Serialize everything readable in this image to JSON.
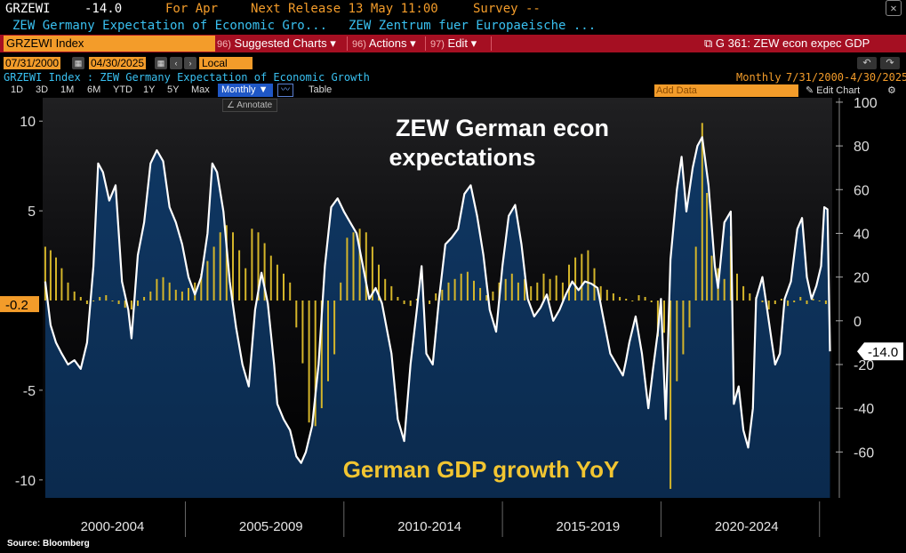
{
  "ticker": {
    "symbol": "GRZEWI",
    "value": "-14.0",
    "period": "For Apr",
    "next_release": "Next Release 13 May 11:00",
    "survey": "Survey --",
    "close_icon": "close-icon"
  },
  "description": {
    "name": "ZEW Germany Expectation of Economic Gro...",
    "source": "ZEW Zentrum fuer Europaeische ..."
  },
  "command_bar": {
    "input": "GRZEWI Index",
    "suggested": "Suggested Charts",
    "suggested_num": "96)",
    "actions": "Actions",
    "actions_num": "96)",
    "edit": "Edit",
    "edit_num": "97)",
    "function": "G 361: ZEW econ expec GDP"
  },
  "date_row": {
    "start": "07/31/2000",
    "end": "04/30/2025",
    "currency": "Local CCY"
  },
  "info_row": {
    "title": "GRZEWI Index : ZEW Germany Expectation of Economic Growth",
    "frequency": "Monthly",
    "range": "7/31/2000-4/30/2025"
  },
  "range_buttons": [
    "1D",
    "3D",
    "1M",
    "6M",
    "YTD",
    "1Y",
    "5Y",
    "Max"
  ],
  "toolbar": {
    "frequency_select": "Monthly",
    "table": "Table",
    "add_data": "Add Data",
    "edit_chart": "Edit Chart",
    "annotate": "Annotate"
  },
  "colors": {
    "gdp_bar": "#d4b52a",
    "zew_line": "#ffffff",
    "area_fill": "#0e3560",
    "value_tag": "#f39c2a"
  },
  "chart_data": {
    "type": "line",
    "titles": [
      "ZEW German econ",
      "expectations"
    ],
    "gdp_label": "German GDP growth YoY",
    "source": "Source: Bloomberg",
    "x_labels": [
      "2000-2004",
      "2005-2009",
      "2010-2014",
      "2015-2019",
      "2020-2024"
    ],
    "xlim": [
      2000.5,
      2025.4
    ],
    "left_axis": {
      "label": "GDP growth YoY (%)",
      "ticks": [
        10,
        5,
        -5,
        -10
      ],
      "ylim": [
        -11,
        11.3
      ],
      "current_tag": "-0.2"
    },
    "right_axis": {
      "label": "ZEW expectations",
      "ticks": [
        100,
        80,
        60,
        40,
        20,
        0,
        -20,
        -40,
        -60
      ],
      "ylim": [
        -81,
        102
      ],
      "current_tag": "-14.0"
    },
    "series": [
      {
        "name": "ZEW Germany Expectation of Economic Growth",
        "axis": "right",
        "points": [
          [
            2000.58,
            18
          ],
          [
            2000.75,
            -2
          ],
          [
            2000.92,
            -10
          ],
          [
            2001.1,
            -15
          ],
          [
            2001.3,
            -20
          ],
          [
            2001.5,
            -18
          ],
          [
            2001.7,
            -22
          ],
          [
            2001.9,
            -10
          ],
          [
            2002.1,
            25
          ],
          [
            2002.25,
            72
          ],
          [
            2002.4,
            68
          ],
          [
            2002.6,
            55
          ],
          [
            2002.8,
            62
          ],
          [
            2003.0,
            18
          ],
          [
            2003.2,
            5
          ],
          [
            2003.3,
            -8
          ],
          [
            2003.5,
            30
          ],
          [
            2003.7,
            45
          ],
          [
            2003.9,
            72
          ],
          [
            2004.1,
            78
          ],
          [
            2004.3,
            73
          ],
          [
            2004.5,
            52
          ],
          [
            2004.7,
            45
          ],
          [
            2004.9,
            35
          ],
          [
            2005.1,
            20
          ],
          [
            2005.3,
            12
          ],
          [
            2005.5,
            20
          ],
          [
            2005.7,
            40
          ],
          [
            2005.85,
            72
          ],
          [
            2006.0,
            68
          ],
          [
            2006.2,
            50
          ],
          [
            2006.4,
            18
          ],
          [
            2006.6,
            -3
          ],
          [
            2006.8,
            -20
          ],
          [
            2007.0,
            -30
          ],
          [
            2007.2,
            5
          ],
          [
            2007.4,
            22
          ],
          [
            2007.6,
            8
          ],
          [
            2007.8,
            -20
          ],
          [
            2007.9,
            -38
          ],
          [
            2008.1,
            -45
          ],
          [
            2008.3,
            -50
          ],
          [
            2008.5,
            -62
          ],
          [
            2008.65,
            -65
          ],
          [
            2008.8,
            -60
          ],
          [
            2009.0,
            -48
          ],
          [
            2009.2,
            -20
          ],
          [
            2009.4,
            25
          ],
          [
            2009.6,
            52
          ],
          [
            2009.8,
            56
          ],
          [
            2010.0,
            50
          ],
          [
            2010.2,
            45
          ],
          [
            2010.4,
            40
          ],
          [
            2010.6,
            25
          ],
          [
            2010.8,
            10
          ],
          [
            2011.0,
            15
          ],
          [
            2011.2,
            8
          ],
          [
            2011.5,
            -15
          ],
          [
            2011.7,
            -45
          ],
          [
            2011.9,
            -55
          ],
          [
            2012.1,
            -20
          ],
          [
            2012.3,
            5
          ],
          [
            2012.45,
            25
          ],
          [
            2012.6,
            -15
          ],
          [
            2012.8,
            -20
          ],
          [
            2013.0,
            10
          ],
          [
            2013.2,
            35
          ],
          [
            2013.4,
            38
          ],
          [
            2013.6,
            42
          ],
          [
            2013.8,
            58
          ],
          [
            2014.0,
            62
          ],
          [
            2014.2,
            48
          ],
          [
            2014.4,
            30
          ],
          [
            2014.6,
            5
          ],
          [
            2014.8,
            -5
          ],
          [
            2015.0,
            25
          ],
          [
            2015.2,
            48
          ],
          [
            2015.4,
            53
          ],
          [
            2015.6,
            35
          ],
          [
            2015.8,
            10
          ],
          [
            2016.0,
            2
          ],
          [
            2016.2,
            6
          ],
          [
            2016.4,
            12
          ],
          [
            2016.6,
            0
          ],
          [
            2016.8,
            5
          ],
          [
            2017.0,
            12
          ],
          [
            2017.2,
            18
          ],
          [
            2017.4,
            14
          ],
          [
            2017.6,
            18
          ],
          [
            2017.8,
            17
          ],
          [
            2018.0,
            15
          ],
          [
            2018.2,
            0
          ],
          [
            2018.4,
            -15
          ],
          [
            2018.6,
            -20
          ],
          [
            2018.8,
            -25
          ],
          [
            2018.9,
            -18
          ],
          [
            2019.0,
            -10
          ],
          [
            2019.2,
            2
          ],
          [
            2019.4,
            -15
          ],
          [
            2019.6,
            -40
          ],
          [
            2019.75,
            -22
          ],
          [
            2019.9,
            -5
          ],
          [
            2020.0,
            10
          ],
          [
            2020.15,
            -45
          ],
          [
            2020.3,
            28
          ],
          [
            2020.5,
            60
          ],
          [
            2020.65,
            75
          ],
          [
            2020.8,
            50
          ],
          [
            2021.0,
            70
          ],
          [
            2021.15,
            80
          ],
          [
            2021.3,
            84
          ],
          [
            2021.5,
            62
          ],
          [
            2021.7,
            25
          ],
          [
            2021.8,
            15
          ],
          [
            2022.0,
            45
          ],
          [
            2022.2,
            50
          ],
          [
            2022.3,
            -38
          ],
          [
            2022.45,
            -30
          ],
          [
            2022.6,
            -50
          ],
          [
            2022.75,
            -58
          ],
          [
            2022.9,
            -40
          ],
          [
            2023.0,
            10
          ],
          [
            2023.2,
            20
          ],
          [
            2023.35,
            5
          ],
          [
            2023.5,
            -10
          ],
          [
            2023.6,
            -20
          ],
          [
            2023.75,
            -15
          ],
          [
            2023.9,
            10
          ],
          [
            2024.1,
            18
          ],
          [
            2024.3,
            42
          ],
          [
            2024.45,
            47
          ],
          [
            2024.6,
            20
          ],
          [
            2024.75,
            10
          ],
          [
            2024.9,
            16
          ],
          [
            2025.05,
            25
          ],
          [
            2025.15,
            52
          ],
          [
            2025.25,
            51
          ],
          [
            2025.33,
            -14
          ]
        ]
      },
      {
        "name": "German GDP growth YoY",
        "axis": "left",
        "points": [
          [
            2000.58,
            3.0
          ],
          [
            2000.75,
            2.8
          ],
          [
            2000.92,
            2.4
          ],
          [
            2001.1,
            1.8
          ],
          [
            2001.3,
            1.0
          ],
          [
            2001.5,
            0.5
          ],
          [
            2001.7,
            0.2
          ],
          [
            2001.9,
            -0.2
          ],
          [
            2002.1,
            0.0
          ],
          [
            2002.3,
            0.2
          ],
          [
            2002.5,
            0.3
          ],
          [
            2002.7,
            0.0
          ],
          [
            2002.9,
            -0.2
          ],
          [
            2003.1,
            -0.4
          ],
          [
            2003.3,
            -0.5
          ],
          [
            2003.5,
            -0.3
          ],
          [
            2003.7,
            0.2
          ],
          [
            2003.9,
            0.5
          ],
          [
            2004.1,
            1.2
          ],
          [
            2004.3,
            1.3
          ],
          [
            2004.5,
            1.0
          ],
          [
            2004.7,
            0.6
          ],
          [
            2004.9,
            0.5
          ],
          [
            2005.1,
            0.7
          ],
          [
            2005.3,
            1.0
          ],
          [
            2005.5,
            1.5
          ],
          [
            2005.7,
            2.2
          ],
          [
            2005.9,
            3.0
          ],
          [
            2006.1,
            3.8
          ],
          [
            2006.3,
            4.2
          ],
          [
            2006.5,
            3.8
          ],
          [
            2006.7,
            2.8
          ],
          [
            2006.9,
            1.8
          ],
          [
            2007.1,
            4.0
          ],
          [
            2007.3,
            3.8
          ],
          [
            2007.5,
            3.2
          ],
          [
            2007.7,
            2.5
          ],
          [
            2007.9,
            2.0
          ],
          [
            2008.1,
            1.5
          ],
          [
            2008.3,
            1.0
          ],
          [
            2008.5,
            -1.5
          ],
          [
            2008.7,
            -3.5
          ],
          [
            2008.9,
            -6.8
          ],
          [
            2009.1,
            -7.0
          ],
          [
            2009.3,
            -6.0
          ],
          [
            2009.5,
            -4.5
          ],
          [
            2009.7,
            -3.0
          ],
          [
            2009.9,
            1.0
          ],
          [
            2010.1,
            3.5
          ],
          [
            2010.3,
            3.8
          ],
          [
            2010.5,
            4.0
          ],
          [
            2010.7,
            3.8
          ],
          [
            2010.9,
            3.0
          ],
          [
            2011.1,
            2.0
          ],
          [
            2011.3,
            1.2
          ],
          [
            2011.5,
            0.8
          ],
          [
            2011.7,
            0.2
          ],
          [
            2011.9,
            -0.2
          ],
          [
            2012.1,
            -0.3
          ],
          [
            2012.3,
            0.1
          ],
          [
            2012.5,
            0.0
          ],
          [
            2012.7,
            -0.2
          ],
          [
            2012.9,
            0.4
          ],
          [
            2013.1,
            0.6
          ],
          [
            2013.3,
            1.0
          ],
          [
            2013.5,
            1.2
          ],
          [
            2013.7,
            1.5
          ],
          [
            2013.9,
            1.6
          ],
          [
            2014.1,
            1.1
          ],
          [
            2014.3,
            0.7
          ],
          [
            2014.5,
            0.3
          ],
          [
            2014.7,
            0.5
          ],
          [
            2014.9,
            1.0
          ],
          [
            2015.1,
            1.2
          ],
          [
            2015.3,
            1.5
          ],
          [
            2015.5,
            1.0
          ],
          [
            2015.7,
            1.2
          ],
          [
            2015.9,
            0.8
          ],
          [
            2016.1,
            1.0
          ],
          [
            2016.3,
            1.5
          ],
          [
            2016.5,
            1.2
          ],
          [
            2016.7,
            1.4
          ],
          [
            2016.9,
            1.0
          ],
          [
            2017.1,
            2.0
          ],
          [
            2017.3,
            2.4
          ],
          [
            2017.5,
            2.6
          ],
          [
            2017.7,
            2.8
          ],
          [
            2017.9,
            1.8
          ],
          [
            2018.1,
            0.8
          ],
          [
            2018.3,
            0.6
          ],
          [
            2018.5,
            0.4
          ],
          [
            2018.7,
            0.2
          ],
          [
            2018.9,
            0.1
          ],
          [
            2019.1,
            0.0
          ],
          [
            2019.3,
            0.3
          ],
          [
            2019.5,
            0.2
          ],
          [
            2019.7,
            -0.1
          ],
          [
            2019.9,
            -2.0
          ],
          [
            2020.1,
            -1.8
          ],
          [
            2020.3,
            -10.5
          ],
          [
            2020.5,
            -4.5
          ],
          [
            2020.7,
            -3.0
          ],
          [
            2020.9,
            -1.5
          ],
          [
            2021.1,
            3.0
          ],
          [
            2021.3,
            9.9
          ],
          [
            2021.45,
            6.0
          ],
          [
            2021.6,
            2.5
          ],
          [
            2021.8,
            1.8
          ],
          [
            2022.0,
            1.2
          ],
          [
            2022.2,
            3.6
          ],
          [
            2022.4,
            1.5
          ],
          [
            2022.6,
            0.8
          ],
          [
            2022.8,
            0.4
          ],
          [
            2023.0,
            0.2
          ],
          [
            2023.2,
            -0.1
          ],
          [
            2023.4,
            -0.5
          ],
          [
            2023.6,
            -0.2
          ],
          [
            2023.8,
            0.1
          ],
          [
            2024.0,
            -0.3
          ],
          [
            2024.2,
            -0.1
          ],
          [
            2024.4,
            0.2
          ],
          [
            2024.6,
            -0.2
          ],
          [
            2024.8,
            0.1
          ],
          [
            2025.0,
            0.0
          ],
          [
            2025.2,
            -0.2
          ]
        ]
      }
    ]
  },
  "footer": {
    "source": "Source: Bloomberg"
  }
}
